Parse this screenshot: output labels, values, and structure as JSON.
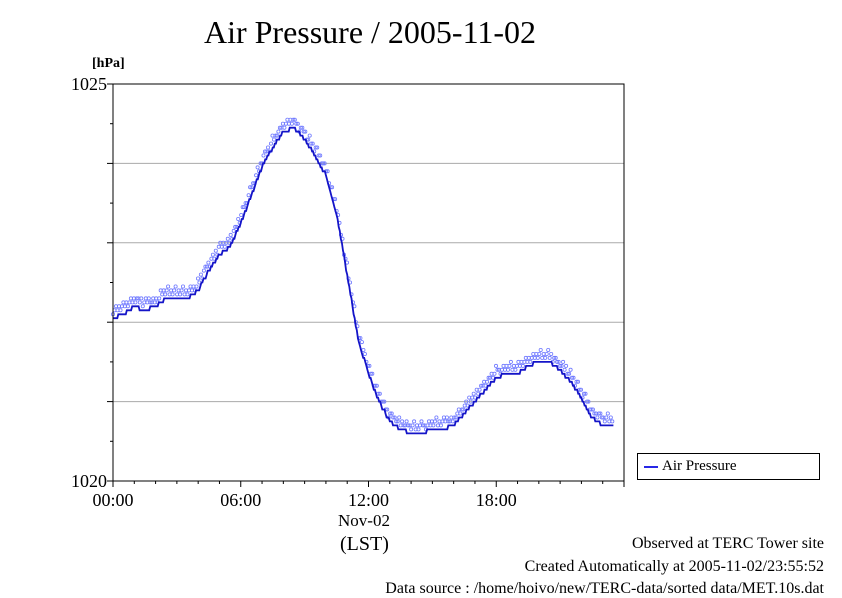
{
  "title": "Air Pressure / 2005-11-02",
  "unit_label": "[hPa]",
  "x_date_label": "Nov-02",
  "x_zone_label": "(LST)",
  "legend_label": "Air Pressure",
  "footer": {
    "observed": "Observed at TERC Tower site",
    "created": "Created Automatically at 2005-11-02/23:55:52",
    "source": "Data source : /home/hoivo/new/TERC-data/sorted  data/MET.10s.dat"
  },
  "colors": {
    "line": "#1414c8",
    "points": "#6e78ff",
    "grid": "#aaaaaa"
  },
  "chart_data": {
    "type": "line",
    "title": "Air Pressure / 2005-11-02",
    "ylabel": "[hPa]",
    "ylim": [
      1020,
      1025
    ],
    "xlim": [
      0,
      24
    ],
    "x_ticks": [
      0,
      6,
      12,
      18
    ],
    "x_tick_labels": [
      "00:00",
      "06:00",
      "12:00",
      "18:00"
    ],
    "y_ticks": [
      1020,
      1025
    ],
    "y_tick_labels": [
      "1020",
      "1025"
    ],
    "grid": "horizontal",
    "legend_position": "right",
    "series": [
      {
        "name": "Air Pressure",
        "x": [
          0,
          0.5,
          1,
          1.5,
          2,
          2.5,
          3,
          3.5,
          4,
          4.5,
          5,
          5.5,
          6,
          6.5,
          7,
          7.5,
          8,
          8.5,
          9,
          9.5,
          10,
          10.5,
          11,
          11.5,
          12,
          12.5,
          13,
          13.5,
          14,
          14.5,
          15,
          15.5,
          16,
          16.5,
          17,
          17.5,
          18,
          18.5,
          19,
          19.5,
          20,
          20.5,
          21,
          21.5,
          22,
          22.5,
          23,
          23.5
        ],
        "y": [
          1022.05,
          1022.1,
          1022.2,
          1022.15,
          1022.2,
          1022.3,
          1022.3,
          1022.3,
          1022.4,
          1022.65,
          1022.85,
          1022.95,
          1023.25,
          1023.6,
          1023.95,
          1024.2,
          1024.4,
          1024.45,
          1024.3,
          1024.1,
          1023.85,
          1023.35,
          1022.6,
          1021.8,
          1021.35,
          1021.0,
          1020.75,
          1020.65,
          1020.6,
          1020.6,
          1020.65,
          1020.65,
          1020.7,
          1020.85,
          1021.0,
          1021.15,
          1021.3,
          1021.35,
          1021.35,
          1021.45,
          1021.5,
          1021.5,
          1021.4,
          1021.25,
          1021.05,
          1020.8,
          1020.7,
          1020.7
        ]
      }
    ]
  }
}
